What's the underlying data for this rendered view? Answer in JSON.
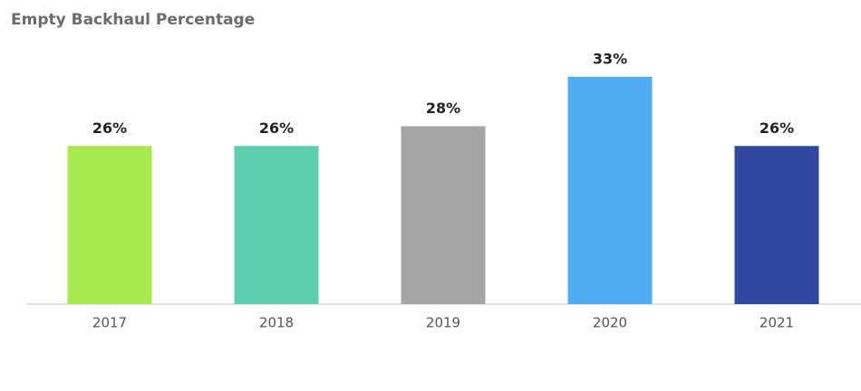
{
  "chart_data": {
    "type": "bar",
    "title": "Empty Backhaul Percentage",
    "categories": [
      "2017",
      "2018",
      "2019",
      "2020",
      "2021"
    ],
    "values": [
      26,
      26,
      28,
      33,
      26
    ],
    "value_labels": [
      "26%",
      "26%",
      "28%",
      "33%",
      "26%"
    ],
    "colors": [
      "#a8e952",
      "#5ecfae",
      "#a5a5a5",
      "#4faef2",
      "#31479f"
    ],
    "ylim": [
      10,
      35
    ]
  }
}
